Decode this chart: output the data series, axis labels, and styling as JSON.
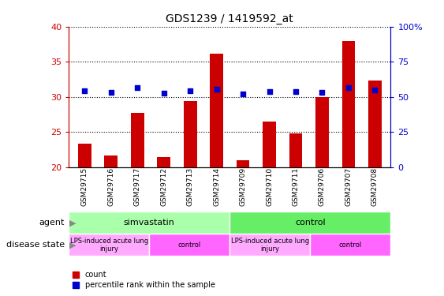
{
  "title": "GDS1239 / 1419592_at",
  "samples": [
    "GSM29715",
    "GSM29716",
    "GSM29717",
    "GSM29712",
    "GSM29713",
    "GSM29714",
    "GSM29709",
    "GSM29710",
    "GSM29711",
    "GSM29706",
    "GSM29707",
    "GSM29708"
  ],
  "count_values": [
    23.3,
    21.7,
    27.7,
    21.5,
    29.4,
    36.1,
    21.0,
    26.5,
    24.8,
    30.0,
    38.0,
    32.3
  ],
  "percentile_values": [
    54.4,
    53.2,
    56.4,
    52.6,
    54.2,
    55.6,
    52.2,
    53.6,
    54.0,
    53.0,
    56.8,
    54.8
  ],
  "count_base": 20,
  "ylim_left": [
    20,
    40
  ],
  "ylim_right": [
    0,
    100
  ],
  "yticks_left": [
    20,
    25,
    30,
    35,
    40
  ],
  "yticks_right": [
    0,
    25,
    50,
    75,
    100
  ],
  "bar_color": "#CC0000",
  "dot_color": "#0000CC",
  "bar_width": 0.5,
  "agent_color_simvastatin": "#AAFFAA",
  "agent_color_control": "#66EE66",
  "disease_color_LPS": "#FFAAFF",
  "disease_color_control": "#FF66FF",
  "agent_groups": [
    {
      "label": "simvastatin",
      "start": 0,
      "end": 6
    },
    {
      "label": "control",
      "start": 6,
      "end": 12
    }
  ],
  "disease_groups": [
    {
      "label": "LPS-induced acute lung\ninjury",
      "start": 0,
      "end": 3,
      "type": "LPS"
    },
    {
      "label": "control",
      "start": 3,
      "end": 6,
      "type": "control"
    },
    {
      "label": "LPS-induced acute lung\ninjury",
      "start": 6,
      "end": 9,
      "type": "LPS"
    },
    {
      "label": "control",
      "start": 9,
      "end": 12,
      "type": "control"
    }
  ],
  "background_color": "#ffffff",
  "sample_bg_color": "#C8C8C8",
  "axis_left_color": "#CC0000",
  "axis_right_color": "#0000CC"
}
